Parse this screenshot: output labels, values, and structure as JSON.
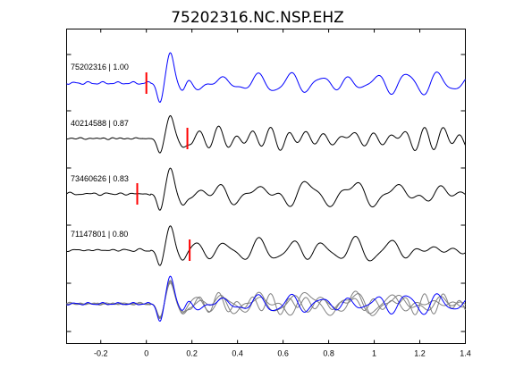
{
  "chart_data": {
    "type": "line",
    "title": "75202316.NC.NSP.EHZ",
    "xlim": [
      -0.35,
      1.4
    ],
    "xticks": [
      -0.2,
      0,
      0.2,
      0.4,
      0.6,
      0.8,
      1,
      1.2,
      1.4
    ],
    "xtick_labels": [
      "-0.2",
      "0",
      "0.2",
      "0.4",
      "0.6",
      "0.8",
      "1",
      "1.2",
      "1.4"
    ],
    "grid": false,
    "legend": "none",
    "series": [
      {
        "name": "75202316 | 1.00",
        "color": "#0000ff",
        "pick_time": 0.0,
        "amplitude": 1.0,
        "t_peak": [
          0.06,
          0.11,
          0.2,
          0.32,
          0.45,
          0.63,
          0.8,
          1.05,
          1.3
        ]
      },
      {
        "name": "40214588 | 0.87",
        "color": "#000000",
        "pick_time": 0.18,
        "amplitude": 0.75,
        "t_peak": [
          0.06,
          0.12,
          0.22,
          0.35,
          0.55,
          0.7,
          0.9,
          1.12
        ]
      },
      {
        "name": "73460626 | 0.83",
        "color": "#000000",
        "pick_time": -0.04,
        "amplitude": 0.85,
        "t_peak": [
          0.06,
          0.11,
          0.25,
          0.38,
          0.6,
          0.75,
          0.95,
          1.18
        ]
      },
      {
        "name": "71147801 | 0.80",
        "color": "#000000",
        "pick_time": 0.19,
        "amplitude": 0.8,
        "t_peak": [
          0.06,
          0.12,
          0.2,
          0.3,
          0.5,
          0.72,
          0.92,
          1.15
        ]
      }
    ],
    "stack": {
      "description_visible": false,
      "trace_colors": [
        "#0000ff",
        "#666666"
      ]
    }
  },
  "colors": {
    "reference_trace": "#0000ff",
    "trace": "#000000",
    "pick_marker": "#ff0000",
    "stack_gray": "#808080"
  }
}
